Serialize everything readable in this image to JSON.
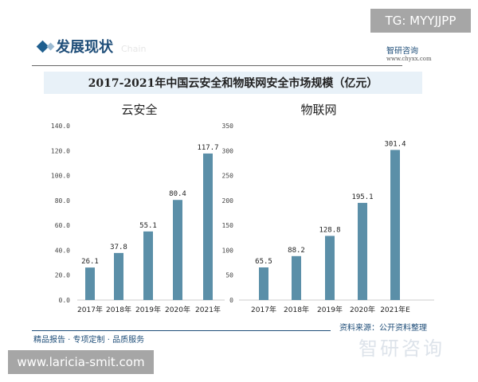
{
  "overlay": {
    "tg": "TG: MYYJJPP",
    "site": "www.laricia-smit.com"
  },
  "header": {
    "section": "发展现状",
    "section_en": "Chain",
    "logo": "智研咨询",
    "logo_url": "www.chyxx.com"
  },
  "footer": {
    "slogan": "精品报告 · 专项定制 · 品质服务",
    "source": "资料来源：公开资料整理",
    "watermark": "智研咨询"
  },
  "colors": {
    "bar": "#5b8fa8",
    "accent": "#1f4e79"
  },
  "chart_data": [
    {
      "type": "bar",
      "title": "2017-2021年中国云安全和物联网安全市场规模（亿元）",
      "subtitle": "云安全",
      "categories": [
        "2017年",
        "2018年",
        "2019年",
        "2020年",
        "2021年"
      ],
      "values": [
        26.1,
        37.8,
        55.1,
        80.4,
        117.7
      ],
      "value_labels": [
        "26.1",
        "37.8",
        "55.1",
        "80.4",
        "117.7"
      ],
      "ylim": [
        0,
        140
      ],
      "yticks": [
        "0.0",
        "20.0",
        "40.0",
        "60.0",
        "80.0",
        "100.0",
        "120.0",
        "140.0"
      ],
      "grid": false
    },
    {
      "type": "bar",
      "subtitle": "物联网",
      "categories": [
        "2017年",
        "2018年",
        "2019年",
        "2020年",
        "2021年E"
      ],
      "values": [
        65.5,
        88.2,
        128.8,
        195.1,
        301.4
      ],
      "value_labels": [
        "65.5",
        "88.2",
        "128.8",
        "195.1",
        "301.4"
      ],
      "ylim": [
        0,
        350
      ],
      "yticks": [
        "0",
        "50",
        "100",
        "150",
        "200",
        "250",
        "300",
        "350"
      ],
      "grid": false
    }
  ]
}
